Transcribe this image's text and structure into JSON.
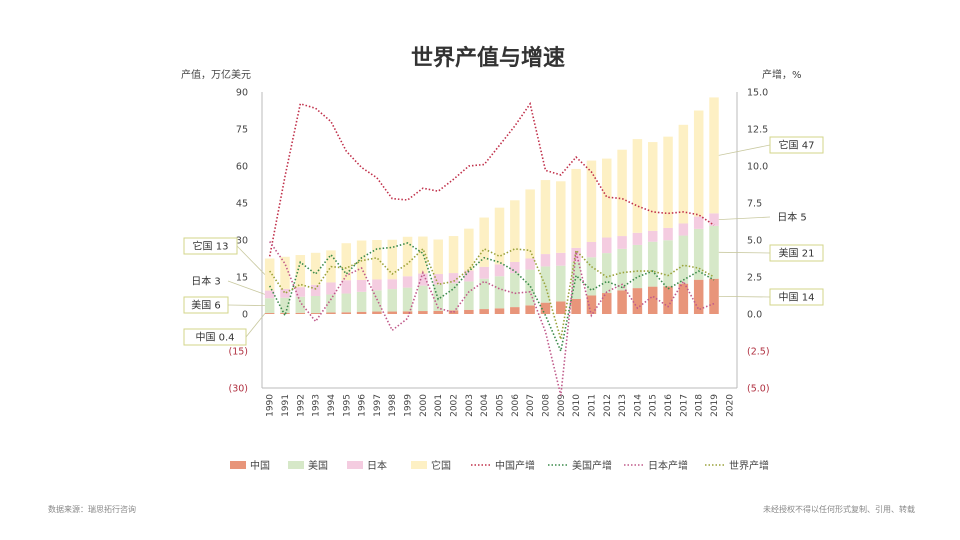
{
  "page": {
    "source": "数据来源：瑞思拓行咨询",
    "copyright": "未经授权不得以任何形式复制、引用、转载"
  },
  "chart_data": {
    "type": "bar",
    "title": "世界产值与增速",
    "ylabel_left": "产值，万亿美元",
    "ylabel_right": "产增，%",
    "stacked": true,
    "grid": false,
    "legend_position": "bottom",
    "left_axis": {
      "ylim": [
        -30,
        90
      ],
      "ticks": [
        90,
        75,
        60,
        45,
        30,
        15,
        0,
        -15,
        -30
      ],
      "tick_labels": [
        "90",
        "75",
        "60",
        "45",
        "30",
        "15",
        "0",
        "(15)",
        "(30)"
      ]
    },
    "right_axis": {
      "ylim": [
        -5,
        15
      ],
      "ticks": [
        15,
        12.5,
        10,
        7.5,
        5,
        2.5,
        0,
        -2.5,
        -5
      ],
      "tick_labels": [
        "15.0",
        "12.5",
        "10.0",
        "7.5",
        "5.0",
        "2.5",
        "0.0",
        "(2.5)",
        "(5.0)"
      ]
    },
    "categories": [
      "1990",
      "1991",
      "1992",
      "1993",
      "1994",
      "1995",
      "1996",
      "1997",
      "1998",
      "1999",
      "2000",
      "2001",
      "2002",
      "2003",
      "2004",
      "2005",
      "2006",
      "2007",
      "2008",
      "2009",
      "2010",
      "2011",
      "2012",
      "2013",
      "2014",
      "2015",
      "2016",
      "2017",
      "2018",
      "2019",
      "2020"
    ],
    "series": [
      {
        "name": "中国",
        "kind": "bar",
        "color": "#e8957a",
        "values": [
          0.4,
          0.4,
          0.5,
          0.4,
          0.6,
          0.7,
          0.9,
          1.0,
          1.0,
          1.1,
          1.2,
          1.3,
          1.5,
          1.7,
          2.0,
          2.3,
          2.8,
          3.5,
          4.6,
          5.1,
          6.1,
          7.5,
          8.5,
          9.6,
          10.5,
          11.1,
          11.2,
          12.3,
          13.9,
          14.3,
          null
        ]
      },
      {
        "name": "美国",
        "kind": "bar",
        "color": "#d6e8c8",
        "values": [
          6.0,
          6.2,
          6.5,
          6.9,
          7.3,
          7.6,
          8.1,
          8.6,
          9.1,
          9.6,
          10.3,
          10.6,
          11.0,
          11.5,
          12.3,
          13.0,
          13.8,
          14.5,
          14.7,
          14.5,
          15.0,
          15.5,
          16.2,
          16.8,
          17.5,
          18.2,
          18.7,
          19.5,
          20.6,
          21.4,
          null
        ]
      },
      {
        "name": "日本",
        "kind": "bar",
        "color": "#f4cce0",
        "values": [
          3.1,
          3.6,
          3.9,
          4.5,
          4.9,
          5.4,
          4.8,
          4.4,
          4.0,
          4.6,
          4.9,
          4.3,
          4.1,
          4.4,
          4.8,
          4.8,
          4.5,
          4.5,
          5.0,
          5.2,
          5.7,
          6.2,
          6.3,
          5.2,
          4.9,
          4.4,
          5.0,
          4.9,
          5.0,
          5.1,
          null
        ]
      },
      {
        "name": "它国",
        "kind": "bar",
        "color": "#fdf0c4",
        "values": [
          13,
          13,
          13,
          13,
          13,
          15,
          16,
          16,
          16,
          16,
          15,
          14,
          15,
          17,
          20,
          23,
          25,
          28,
          30,
          29,
          32,
          33,
          32,
          35,
          38,
          36,
          37,
          40,
          43,
          47,
          null
        ]
      },
      {
        "name": "中国产增",
        "kind": "line",
        "axis": "right",
        "color": "#c0304a",
        "values": [
          3.9,
          9.3,
          14.2,
          13.9,
          13.0,
          11.0,
          9.9,
          9.2,
          7.8,
          7.7,
          8.5,
          8.3,
          9.1,
          10.0,
          10.1,
          11.4,
          12.7,
          14.2,
          9.7,
          9.4,
          10.6,
          9.6,
          7.9,
          7.8,
          7.3,
          6.9,
          6.8,
          6.9,
          6.7,
          6.0,
          null
        ]
      },
      {
        "name": "美国产增",
        "kind": "line",
        "axis": "right",
        "color": "#3a8a4a",
        "values": [
          1.9,
          -0.1,
          3.5,
          2.7,
          4.0,
          2.7,
          3.8,
          4.4,
          4.5,
          4.8,
          4.1,
          1.0,
          1.7,
          2.9,
          3.8,
          3.5,
          2.9,
          1.9,
          -0.1,
          -2.5,
          2.6,
          1.6,
          2.2,
          1.8,
          2.5,
          2.9,
          1.7,
          2.3,
          2.9,
          2.3,
          null
        ]
      },
      {
        "name": "日本产增",
        "kind": "line",
        "axis": "right",
        "color": "#c05a8a",
        "values": [
          4.9,
          3.4,
          0.8,
          -0.5,
          1.0,
          2.6,
          3.1,
          1.0,
          -1.1,
          -0.3,
          2.8,
          0.4,
          0.1,
          1.5,
          2.2,
          1.7,
          1.4,
          1.5,
          -1.2,
          -5.5,
          4.2,
          -0.1,
          1.5,
          2.0,
          0.4,
          1.2,
          0.5,
          2.2,
          0.3,
          0.7,
          null
        ]
      },
      {
        "name": "世界产增",
        "kind": "line",
        "axis": "right",
        "color": "#9aa23a",
        "values": [
          2.9,
          1.4,
          2.0,
          1.7,
          3.2,
          3.1,
          3.6,
          3.8,
          2.7,
          3.4,
          4.4,
          2.0,
          2.2,
          3.0,
          4.4,
          3.9,
          4.4,
          4.3,
          1.9,
          -1.7,
          4.3,
          3.2,
          2.5,
          2.8,
          2.9,
          2.9,
          2.6,
          3.3,
          3.1,
          2.5,
          null
        ]
      }
    ],
    "annotations": [
      {
        "text": "它国 13",
        "side": "left",
        "series": "它国"
      },
      {
        "text": "日本 3",
        "side": "left",
        "series": "日本"
      },
      {
        "text": "美国 6",
        "side": "left",
        "series": "美国"
      },
      {
        "text": "中国 0.4",
        "side": "left",
        "series": "中国"
      },
      {
        "text": "它国 47",
        "side": "right",
        "series": "它国"
      },
      {
        "text": "日本 5",
        "side": "right",
        "series": "日本"
      },
      {
        "text": "美国 21",
        "side": "right",
        "series": "美国"
      },
      {
        "text": "中国 14",
        "side": "right",
        "series": "中国"
      }
    ],
    "legend": [
      "中国",
      "美国",
      "日本",
      "它国",
      "中国产增",
      "美国产增",
      "日本产增",
      "世界产增"
    ]
  }
}
